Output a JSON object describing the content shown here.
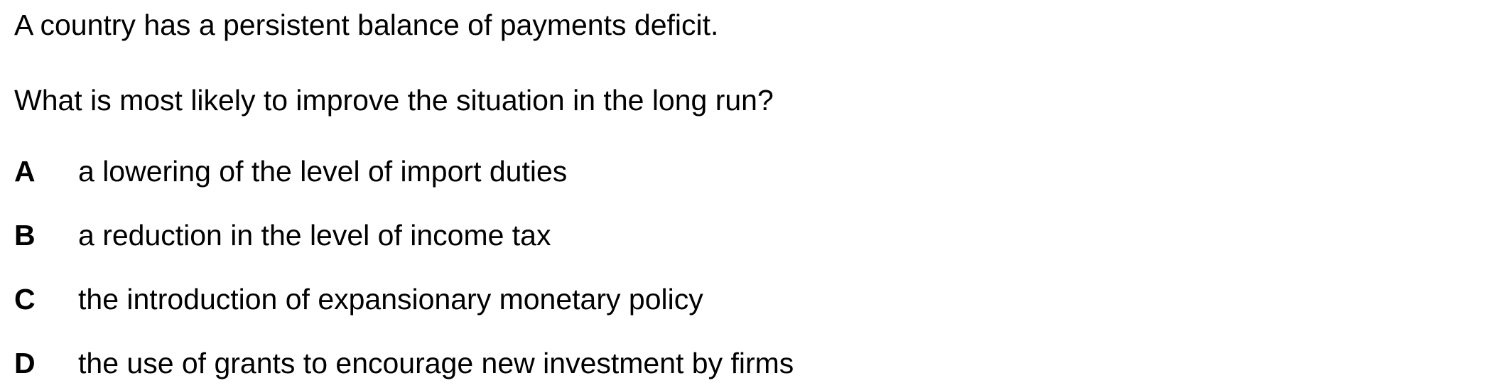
{
  "question": {
    "stem_line_1": "A country has a persistent balance of payments deficit.",
    "stem_line_2": "What is most likely to improve the situation in the long run?",
    "options": [
      {
        "letter": "A",
        "text": "a lowering of the level of import duties"
      },
      {
        "letter": "B",
        "text": "a reduction in the level of income tax"
      },
      {
        "letter": "C",
        "text": "the introduction of expansionary monetary policy"
      },
      {
        "letter": "D",
        "text": "the use of grants to encourage new investment by firms"
      }
    ]
  }
}
